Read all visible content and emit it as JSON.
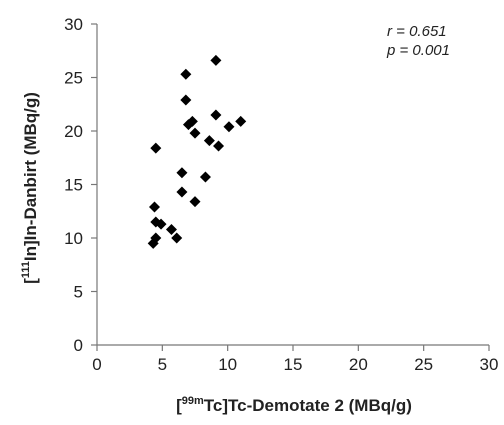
{
  "chart_data": {
    "type": "scatter",
    "title": "",
    "xlabel": {
      "open": "[",
      "sup": "99m",
      "rest": "Tc]Tc-Demotate 2  (MBq/g)"
    },
    "ylabel": {
      "open": "[",
      "sup": "111",
      "rest": "In]In-Danbirt (MBq/g)"
    },
    "xlim": [
      0,
      30
    ],
    "ylim": [
      0,
      30
    ],
    "xticks": [
      0,
      5,
      10,
      15,
      20,
      25,
      30
    ],
    "yticks": [
      0,
      5,
      10,
      15,
      20,
      25,
      30
    ],
    "annotations": [
      "r  = 0.651",
      "p = 0.001"
    ],
    "grid": false,
    "marker": "diamond",
    "marker_color": "#000000",
    "points": [
      {
        "x": 4.3,
        "y": 9.5
      },
      {
        "x": 4.5,
        "y": 10.0
      },
      {
        "x": 4.5,
        "y": 11.5
      },
      {
        "x": 4.9,
        "y": 11.3
      },
      {
        "x": 4.4,
        "y": 12.9
      },
      {
        "x": 4.5,
        "y": 18.4
      },
      {
        "x": 5.7,
        "y": 10.8
      },
      {
        "x": 6.1,
        "y": 10.0
      },
      {
        "x": 6.5,
        "y": 16.1
      },
      {
        "x": 6.5,
        "y": 14.3
      },
      {
        "x": 6.8,
        "y": 25.3
      },
      {
        "x": 6.8,
        "y": 22.9
      },
      {
        "x": 7.0,
        "y": 20.6
      },
      {
        "x": 7.3,
        "y": 20.9
      },
      {
        "x": 7.5,
        "y": 19.8
      },
      {
        "x": 7.5,
        "y": 13.4
      },
      {
        "x": 8.3,
        "y": 15.7
      },
      {
        "x": 8.6,
        "y": 19.1
      },
      {
        "x": 9.1,
        "y": 26.6
      },
      {
        "x": 9.1,
        "y": 21.5
      },
      {
        "x": 9.3,
        "y": 18.6
      },
      {
        "x": 10.1,
        "y": 20.4
      },
      {
        "x": 11.0,
        "y": 20.9
      }
    ]
  }
}
